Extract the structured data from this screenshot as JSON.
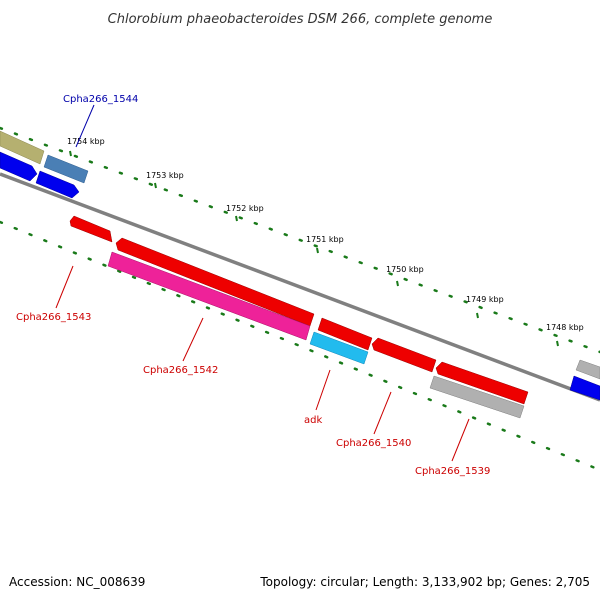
{
  "title": "Chlorobium phaeobacteroides DSM 266, complete genome",
  "footer": {
    "accession": "Accession: NC_008639",
    "summary": "Topology: circular; Length: 3,133,902 bp; Genes: 2,705"
  },
  "ticks": [
    "1754 kbp",
    "1753 kbp",
    "1752 kbp",
    "1751 kbp",
    "1750 kbp",
    "1749 kbp",
    "1748 kbp"
  ],
  "genes": [
    {
      "name": "Cpha266_1544",
      "color": "#0000aa"
    },
    {
      "name": "Cpha266_1543",
      "color": "#cc0000"
    },
    {
      "name": "Cpha266_1542",
      "color": "#cc0000"
    },
    {
      "name": "adk",
      "color": "#cc0000"
    },
    {
      "name": "Cpha266_1540",
      "color": "#cc0000"
    },
    {
      "name": "Cpha266_1539",
      "color": "#cc0000"
    }
  ],
  "colors": {
    "backbone": "#808080",
    "tick_dots": "#1a7a1a",
    "feature_red": "#ee0000",
    "feature_blue": "#0000ee",
    "feature_pink": "#ee2299",
    "feature_cyan": "#22bbee",
    "feature_grey": "#b0b0b0",
    "feature_olive": "#b5b070",
    "feature_steel": "#4a7fb5"
  }
}
